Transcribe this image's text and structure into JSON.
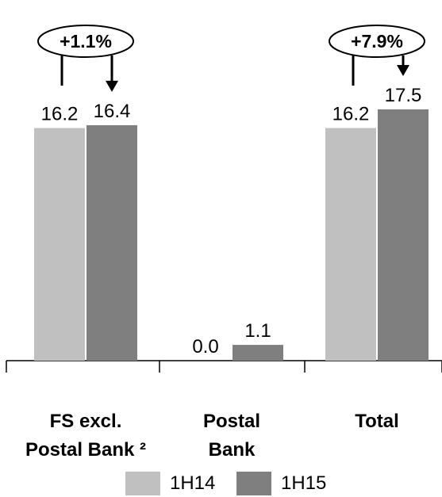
{
  "chart_data": {
    "type": "bar",
    "categories": [
      [
        "FS excl.",
        "Postal Bank ²"
      ],
      [
        "Postal",
        "Bank"
      ],
      [
        "Total"
      ]
    ],
    "series": [
      {
        "name": "1H14",
        "values": [
          16.2,
          0.0,
          16.2
        ],
        "labels": [
          "16.2",
          "0.0",
          "16.2"
        ],
        "color": "#c0c0c0"
      },
      {
        "name": "1H15",
        "values": [
          16.4,
          1.1,
          17.5
        ],
        "labels": [
          "16.4",
          "1.1",
          "17.5"
        ],
        "color": "#7f7f7f"
      }
    ],
    "annotations": [
      {
        "category_index": 0,
        "text": "+1.1%"
      },
      {
        "category_index": 2,
        "text": "+7.9%"
      }
    ],
    "ylim": [
      0,
      17.5
    ],
    "grid": false,
    "legend_position": "bottom"
  }
}
